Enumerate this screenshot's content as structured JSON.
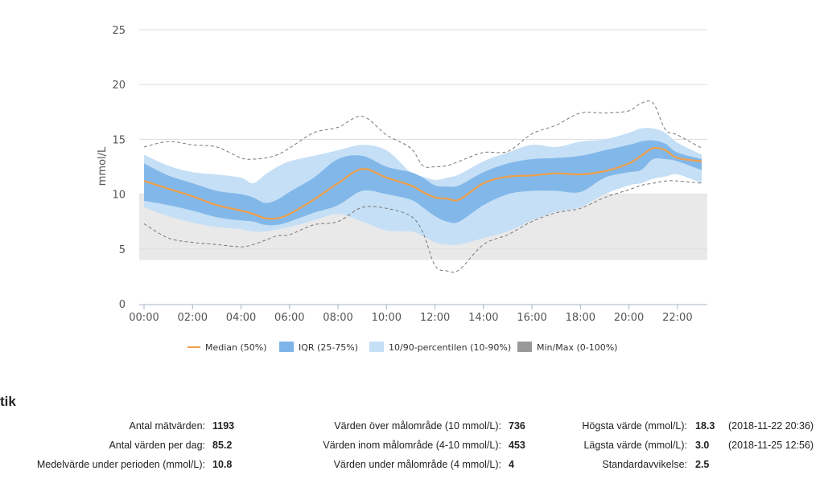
{
  "chart_data": {
    "type": "area",
    "ylabel": "mmol/L",
    "ylim": [
      0,
      25
    ],
    "yticks": [
      "0",
      "5",
      "10",
      "15",
      "20",
      "25"
    ],
    "xticks": [
      "00:00",
      "02:00",
      "04:00",
      "06:00",
      "08:00",
      "10:00",
      "12:00",
      "14:00",
      "16:00",
      "18:00",
      "20:00",
      "22:00"
    ],
    "xlim_hours": [
      0,
      23
    ],
    "target_range": [
      4,
      10
    ],
    "grid": true,
    "legend_position": "bottom",
    "hours": [
      0,
      1,
      2,
      3,
      4,
      4.5,
      5,
      5.5,
      6,
      7,
      8,
      9,
      10,
      11,
      11.5,
      12,
      12.5,
      13,
      14,
      15,
      16,
      17,
      18,
      19,
      20,
      20.5,
      21,
      21.5,
      22,
      23
    ],
    "series": [
      {
        "name": "Median (50%)",
        "values": [
          11.2,
          10.5,
          9.8,
          9.0,
          8.5,
          8.2,
          7.8,
          7.8,
          8.2,
          9.5,
          11.0,
          12.3,
          11.5,
          10.8,
          10.2,
          9.7,
          9.6,
          9.5,
          11.0,
          11.6,
          11.7,
          11.9,
          11.8,
          12.1,
          12.8,
          13.5,
          14.2,
          14.0,
          13.3,
          13.0
        ]
      },
      {
        "name": "IQR (25-75%)",
        "lower": [
          9.4,
          9.0,
          8.5,
          7.9,
          7.6,
          7.5,
          7.2,
          7.2,
          7.5,
          8.3,
          9.0,
          10.3,
          10.0,
          9.5,
          8.8,
          8.0,
          7.5,
          7.5,
          9.0,
          10.0,
          10.3,
          10.3,
          10.2,
          11.5,
          12.0,
          12.2,
          13.2,
          13.2,
          13.0,
          12.2
        ],
        "upper": [
          12.8,
          11.7,
          11.0,
          10.3,
          10.0,
          9.7,
          9.2,
          9.5,
          10.2,
          11.5,
          13.2,
          13.5,
          12.5,
          12.0,
          11.5,
          10.8,
          10.7,
          10.8,
          12.0,
          12.8,
          13.2,
          13.3,
          13.5,
          14.0,
          14.5,
          14.8,
          14.9,
          14.6,
          13.8,
          13.2
        ]
      },
      {
        "name": "10/90-percentilen (10-90%)",
        "lower": [
          8.8,
          8.0,
          7.4,
          7.0,
          6.8,
          6.6,
          6.6,
          6.8,
          7.0,
          7.6,
          8.2,
          7.5,
          6.7,
          6.6,
          6.2,
          5.6,
          5.4,
          5.4,
          6.0,
          6.6,
          7.6,
          8.4,
          8.8,
          10.0,
          10.8,
          11.0,
          11.4,
          11.6,
          11.8,
          11.0
        ],
        "upper": [
          13.6,
          12.6,
          12.0,
          11.8,
          11.5,
          11.0,
          11.8,
          12.5,
          13.0,
          13.5,
          14.0,
          14.5,
          14.0,
          12.0,
          11.6,
          11.3,
          11.5,
          11.8,
          13.0,
          13.8,
          14.5,
          14.3,
          14.8,
          15.0,
          15.6,
          16.0,
          16.0,
          15.6,
          14.7,
          13.6
        ]
      },
      {
        "name": "Min/Max (0-100%)",
        "lower": [
          7.3,
          6.0,
          5.6,
          5.4,
          5.2,
          5.4,
          5.8,
          6.2,
          6.3,
          7.2,
          7.5,
          8.8,
          8.7,
          8.0,
          6.5,
          3.5,
          3.0,
          3.1,
          5.4,
          6.3,
          7.5,
          8.3,
          8.7,
          9.7,
          10.4,
          10.8,
          11.0,
          11.2,
          11.2,
          11.0
        ],
        "upper": [
          14.3,
          14.8,
          14.5,
          14.3,
          13.3,
          13.2,
          13.3,
          13.6,
          14.2,
          15.6,
          16.1,
          17.1,
          15.4,
          14.2,
          12.6,
          12.5,
          12.6,
          13.0,
          13.8,
          13.9,
          15.5,
          16.3,
          17.4,
          17.4,
          17.6,
          18.3,
          18.3,
          15.9,
          15.4,
          14.2
        ]
      }
    ],
    "colors": {
      "median": "#f0a04b",
      "iqr": "#7db5e8",
      "p10_90": "#c5dff6",
      "minmax": "#999999",
      "target": "#e9e9e9",
      "grid": "#dddddd"
    }
  },
  "stats": {
    "heading": "tik",
    "col1": [
      {
        "label": "Antal mätvärden:",
        "value": "1193"
      },
      {
        "label": "Antal värden per dag:",
        "value": "85.2"
      },
      {
        "label": "Medelvärde under perioden (mmol/L):",
        "value": "10.8"
      }
    ],
    "col2": [
      {
        "label": "Värden över målområde (10 mmol/L):",
        "value": "736"
      },
      {
        "label": "Värden inom målområde (4-10 mmol/L):",
        "value": "453"
      },
      {
        "label": "Värden under målområde (4 mmol/L):",
        "value": "4"
      }
    ],
    "col3": [
      {
        "label": "Högsta värde (mmol/L):",
        "value": "18.3",
        "extra": "(2018-11-22 20:36)"
      },
      {
        "label": "Lägsta värde (mmol/L):",
        "value": "3.0",
        "extra": "(2018-11-25 12:56)"
      },
      {
        "label": "Standardavvikelse:",
        "value": "2.5",
        "extra": ""
      }
    ]
  }
}
